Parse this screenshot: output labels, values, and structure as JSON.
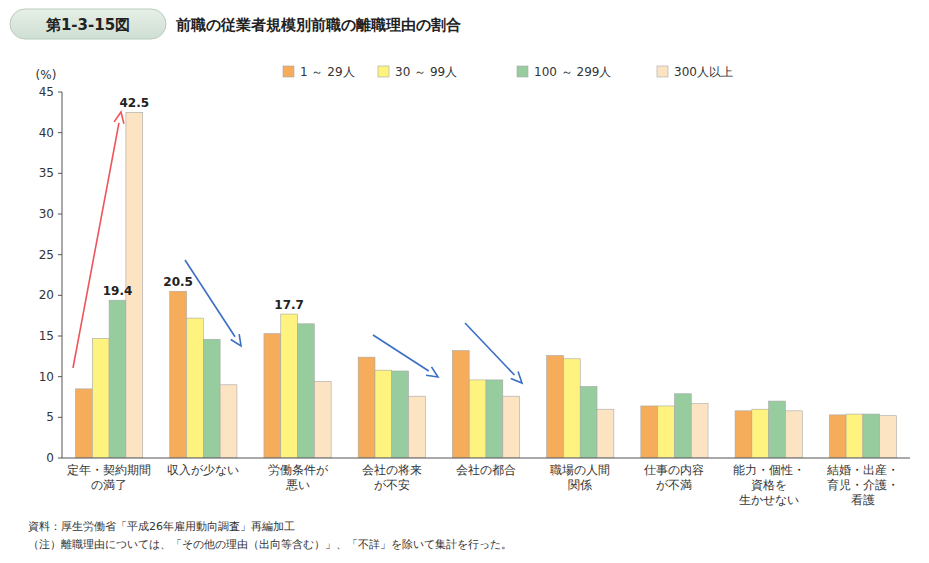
{
  "chart_data": {
    "type": "bar",
    "figure_label": "第1-3-15図",
    "title": "前職の従業者規模別前職の離職理由の割合",
    "y_label": "(%)",
    "categories": [
      "定年・契約期間\nの満了",
      "収入が少ない",
      "労働条件が\n悪い",
      "会社の将来\nが不安",
      "会社の都合",
      "職場の人間\n関係",
      "仕事の内容\nが不満",
      "能力・個性・\n資格を\n生かせない",
      "結婚・出産・\n育児・介護・\n看護"
    ],
    "series": [
      {
        "name": "1 ～ 29人",
        "color": "#f5ad5c",
        "values": [
          8.5,
          20.5,
          15.3,
          12.4,
          13.2,
          12.6,
          6.4,
          5.8,
          5.3
        ],
        "value_labels": [
          null,
          "20.5",
          null,
          null,
          null,
          null,
          null,
          null,
          null
        ]
      },
      {
        "name": "30 ～ 99人",
        "color": "#fff37f",
        "values": [
          14.7,
          17.2,
          17.7,
          10.8,
          9.6,
          12.2,
          6.4,
          6.0,
          5.4
        ],
        "value_labels": [
          null,
          null,
          "17.7",
          null,
          null,
          null,
          null,
          null,
          null
        ]
      },
      {
        "name": "100 ～ 299人",
        "color": "#97cd9e",
        "values": [
          19.4,
          14.6,
          16.5,
          10.7,
          9.6,
          8.8,
          7.9,
          7.0,
          5.4
        ],
        "value_labels": [
          "19.4",
          null,
          null,
          null,
          null,
          null,
          null,
          null,
          null
        ]
      },
      {
        "name": "300人以上",
        "color": "#fce4c3",
        "values": [
          42.5,
          9.0,
          9.4,
          7.6,
          7.6,
          6.0,
          6.7,
          5.8,
          5.2
        ],
        "value_labels": [
          "42.5",
          null,
          null,
          null,
          null,
          null,
          null,
          null,
          null
        ]
      }
    ],
    "ylim": [
      0,
      45
    ],
    "yticks": [
      0,
      5,
      10,
      15,
      20,
      25,
      30,
      35,
      40,
      45
    ],
    "grid": false,
    "legend": "top",
    "data_labels": true,
    "source": "資料：厚生労働省「平成26年雇用動向調査」再編加工",
    "note": "（注）離職理由については、「その他の理由（出向等含む）」、「不詳」を除いて集計を行った。"
  }
}
